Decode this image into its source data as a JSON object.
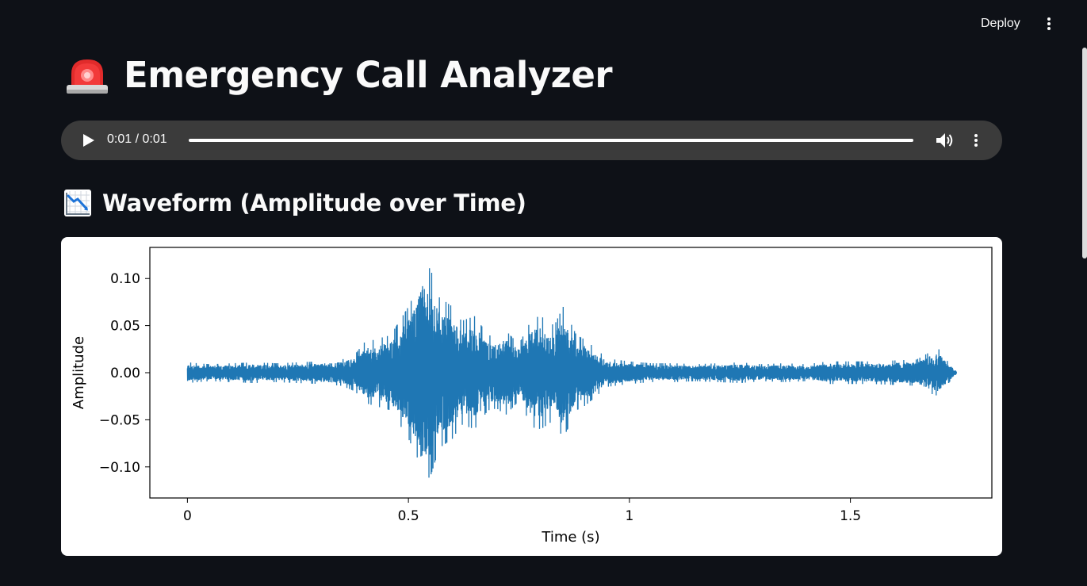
{
  "header": {
    "deploy_label": "Deploy",
    "menu_icon": "kebab-vertical-icon"
  },
  "page": {
    "title": "Emergency Call Analyzer",
    "title_icon": "police-siren-icon"
  },
  "audio_player": {
    "time_label": "0:01 / 0:01",
    "progress": 1.0,
    "icons": [
      "play-icon",
      "volume-icon",
      "kebab-vertical-icon"
    ]
  },
  "waveform_section": {
    "title": "Waveform (Amplitude over Time)",
    "title_icon": "chart-decreasing-icon"
  },
  "chart_data": {
    "type": "line",
    "title": "",
    "xlabel": "Time (s)",
    "ylabel": "Amplitude",
    "xlim": [
      -0.085,
      1.82
    ],
    "ylim": [
      -0.133,
      0.133
    ],
    "xticks": [
      0,
      0.5,
      1,
      1.5
    ],
    "xtick_labels": [
      "0",
      "0.5",
      "1",
      "1.5"
    ],
    "yticks": [
      0.1,
      0.05,
      0.0,
      -0.05,
      -0.1
    ],
    "ytick_labels": [
      "0.10",
      "0.05",
      "0.00",
      "−0.05",
      "−0.10"
    ],
    "grid": false,
    "line_color": "#1f77b4",
    "duration": 1.74,
    "series": [
      {
        "envelope": {
          "t": [
            0,
            0.05,
            0.1,
            0.15,
            0.2,
            0.25,
            0.3,
            0.35,
            0.38,
            0.4,
            0.43,
            0.46,
            0.48,
            0.5,
            0.52,
            0.53,
            0.55,
            0.57,
            0.6,
            0.62,
            0.65,
            0.68,
            0.7,
            0.72,
            0.75,
            0.78,
            0.8,
            0.83,
            0.85,
            0.88,
            0.9,
            0.95,
            1.0,
            1.05,
            1.1,
            1.15,
            1.2,
            1.25,
            1.3,
            1.35,
            1.4,
            1.45,
            1.5,
            1.55,
            1.6,
            1.65,
            1.68,
            1.7,
            1.72,
            1.74
          ],
          "amp": [
            0.011,
            0.009,
            0.01,
            0.011,
            0.01,
            0.011,
            0.012,
            0.014,
            0.02,
            0.032,
            0.036,
            0.04,
            0.055,
            0.07,
            0.09,
            0.118,
            0.11,
            0.08,
            0.07,
            0.055,
            0.06,
            0.04,
            0.038,
            0.045,
            0.03,
            0.058,
            0.06,
            0.05,
            0.07,
            0.04,
            0.035,
            0.015,
            0.012,
            0.01,
            0.01,
            0.009,
            0.01,
            0.011,
            0.009,
            0.01,
            0.009,
            0.012,
            0.012,
            0.012,
            0.013,
            0.014,
            0.022,
            0.025,
            0.012,
            0.002
          ]
        }
      }
    ]
  }
}
